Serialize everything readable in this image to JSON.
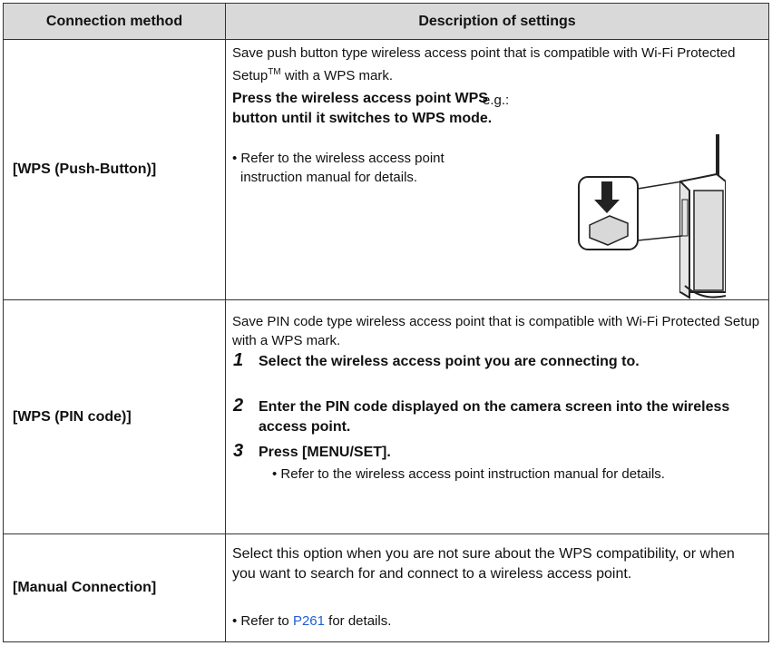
{
  "table": {
    "header": [
      "Connection method",
      "Description of settings"
    ],
    "rows": [
      {
        "method": "[WPS (Push-Button)]",
        "intro_before": "Save push button type wireless access point that is compatible with Wi-Fi Protected Setup",
        "trademark": "TM",
        "intro_after": " with a WPS mark.",
        "instruction": "Press the wireless access point WPS button until it switches to WPS mode.",
        "note": "• Refer to the wireless access point instruction manual for details.",
        "example_label": "e.g.:"
      },
      {
        "method": "[WPS (PIN code)]",
        "intro": "Save PIN code type wireless access point that is compatible with Wi-Fi Protected Setup with a WPS mark.",
        "steps": [
          {
            "number": "1",
            "text": "Select the wireless access point you are connecting to."
          },
          {
            "number": "2",
            "text": "Enter the PIN code displayed on the camera screen into the wireless access point."
          },
          {
            "number": "3",
            "text": "Press [MENU/SET]."
          }
        ],
        "note": "• Refer to the wireless access point instruction manual for details."
      },
      {
        "method": "[Manual Connection]",
        "intro": "Select this option when you are not sure about the WPS compatibility, or when you want to search for and connect to a wireless access point.",
        "note_before": "• Refer to ",
        "note_link": "P261",
        "note_after": " for details."
      }
    ]
  }
}
